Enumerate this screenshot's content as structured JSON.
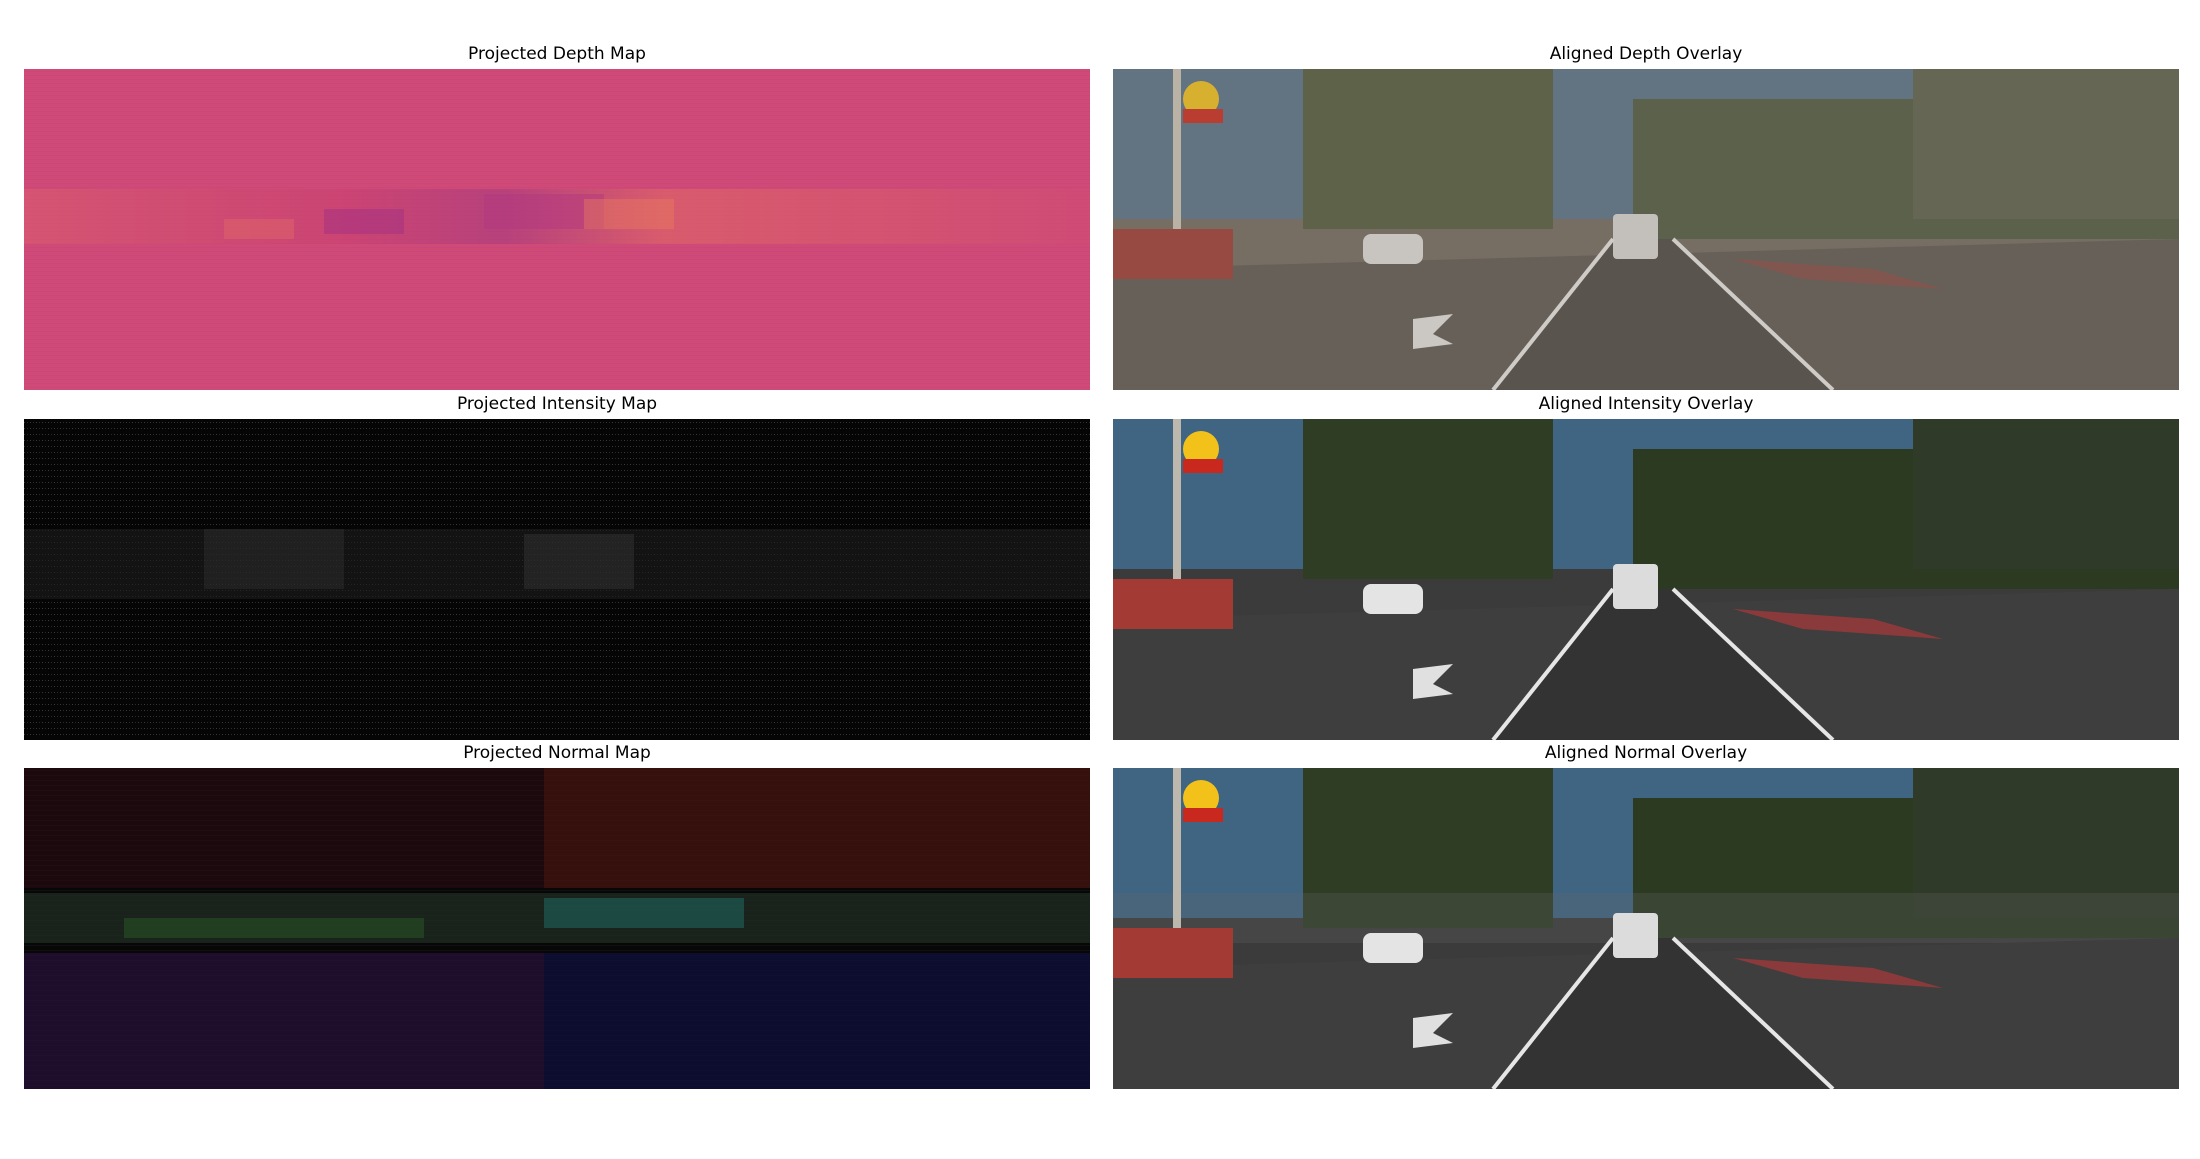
{
  "figure": {
    "panels": [
      {
        "title": "Projected Depth Map",
        "kind": "depth"
      },
      {
        "title": "Aligned Depth Overlay",
        "kind": "scene"
      },
      {
        "title": "Projected Intensity Map",
        "kind": "intensity"
      },
      {
        "title": "Aligned Intensity Overlay",
        "kind": "scene"
      },
      {
        "title": "Projected Normal Map",
        "kind": "normal"
      },
      {
        "title": "Aligned Normal Overlay",
        "kind": "scene"
      }
    ]
  },
  "colors": {
    "depth_base": "#d04a78",
    "sky": "#4d7191",
    "road": "#3e3e3e",
    "trees": "#3a4a2e",
    "bike_lane": "#8a3a3a",
    "logo_yellow": "#f2c21b",
    "logo_red": "#c8281e"
  },
  "icons": [
    "m-logo-sign",
    "car-icon",
    "van-icon",
    "road-arrow-icon"
  ]
}
